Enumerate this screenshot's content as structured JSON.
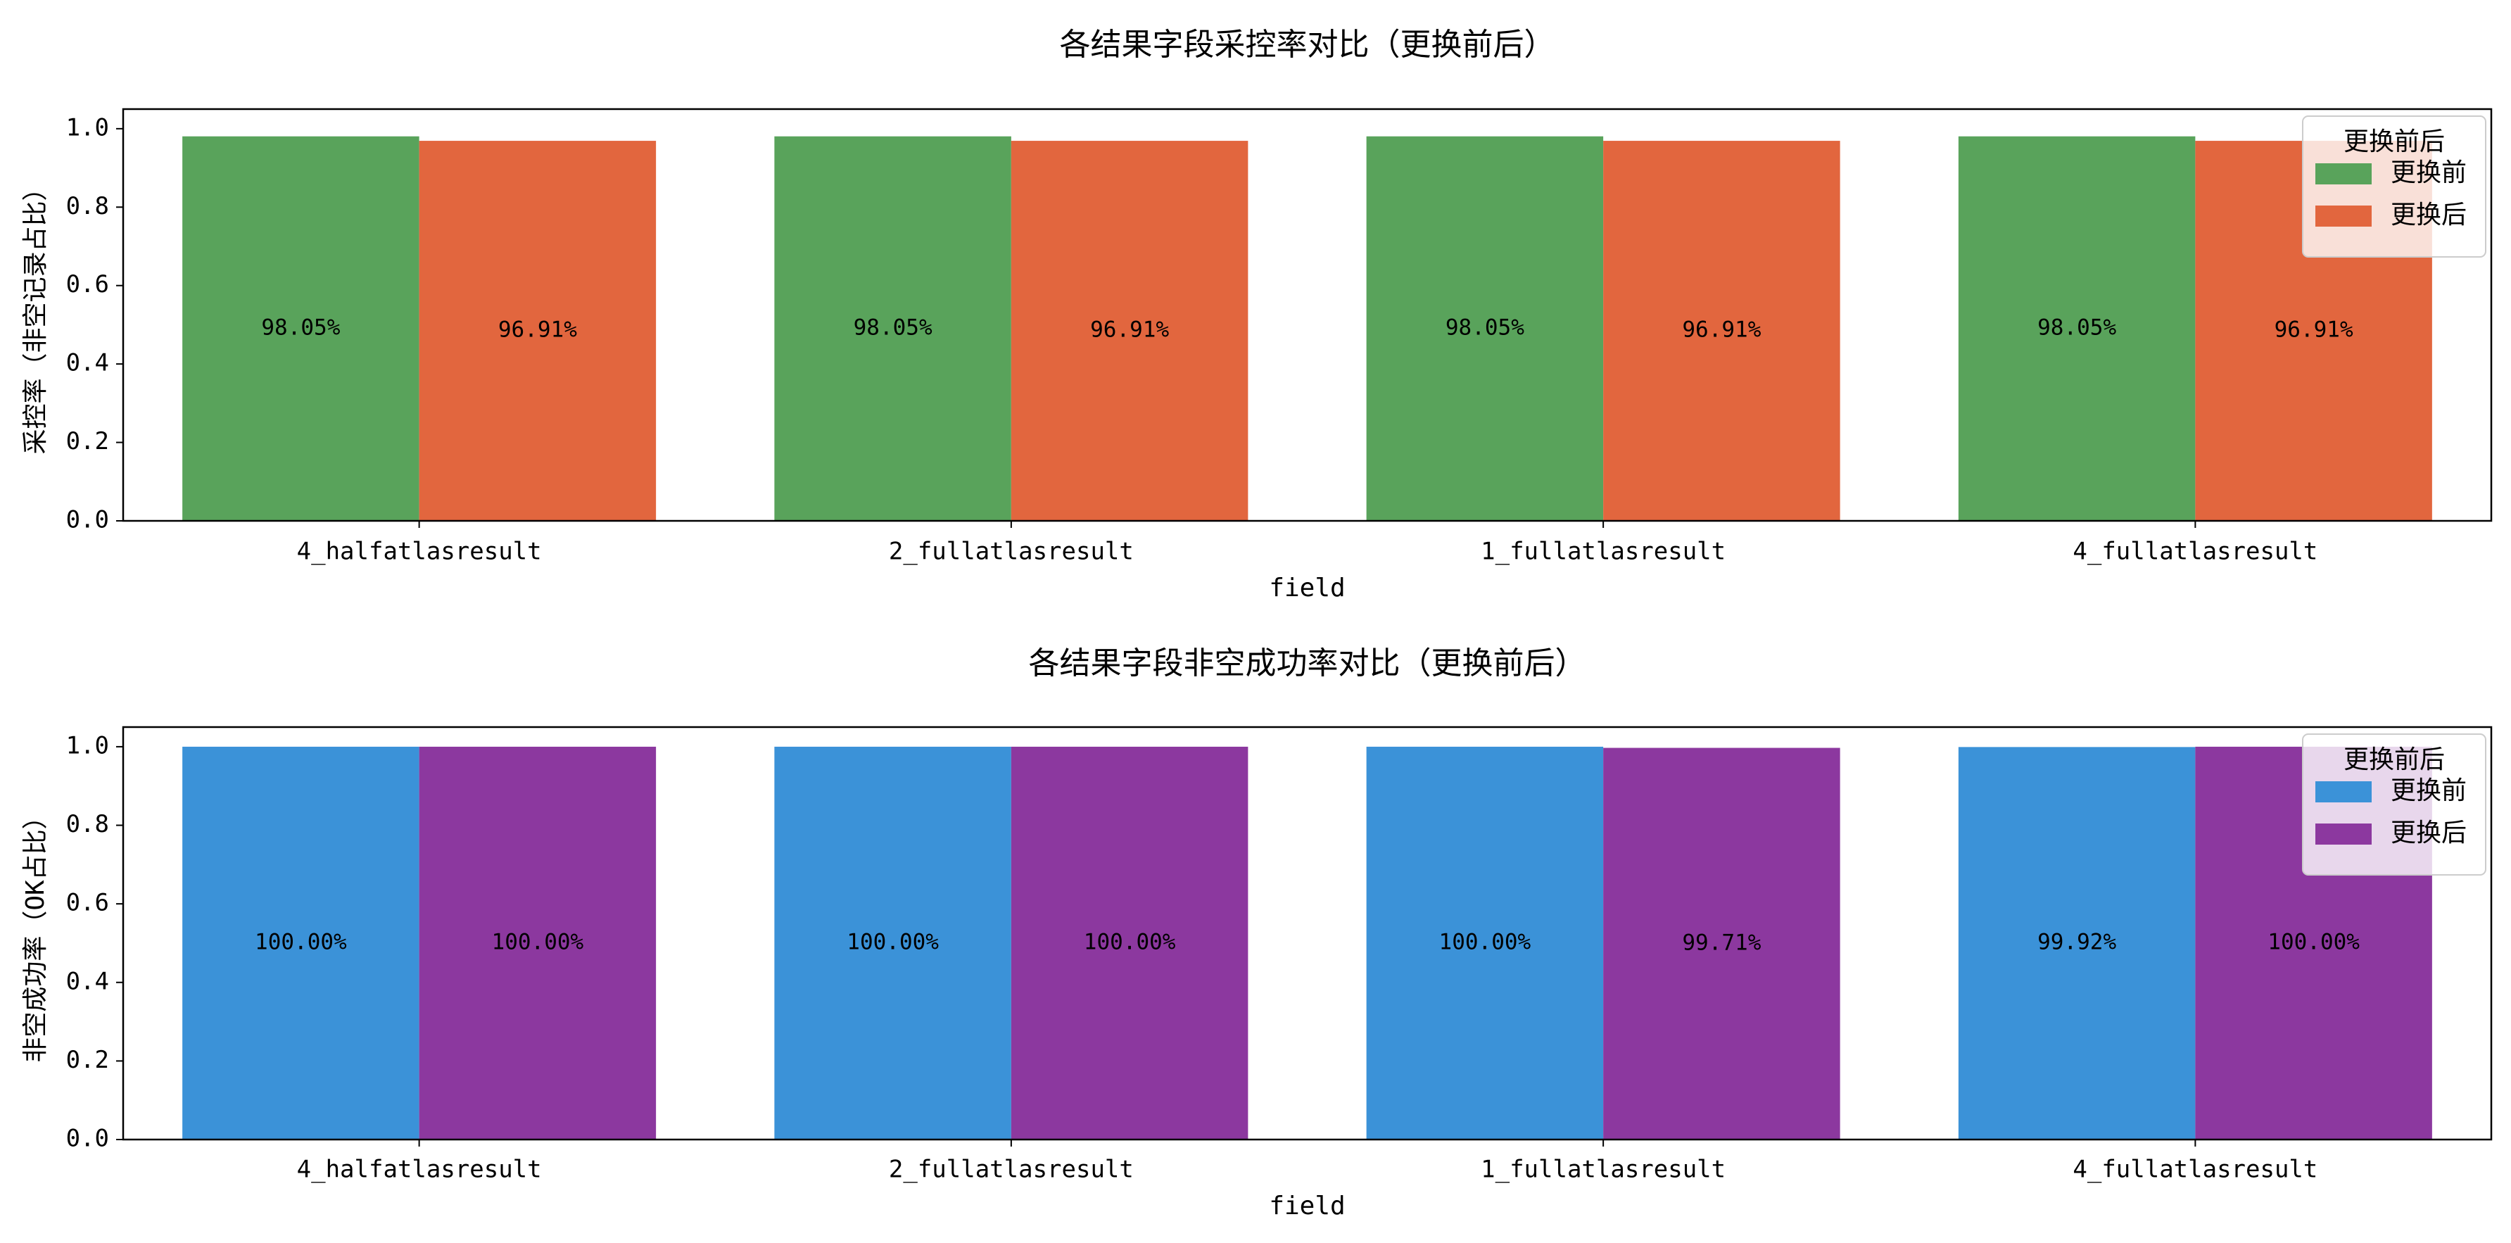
{
  "chart_data": [
    {
      "type": "bar",
      "title": "各结果字段采控率对比（更换前后）",
      "xlabel": "field",
      "ylabel": "采控率（非空记录占比）",
      "categories": [
        "4_halfatlasresult",
        "2_fullatlasresult",
        "1_fullatlasresult",
        "4_fullatlasresult"
      ],
      "series": [
        {
          "name": "更换前",
          "color": "#59a35b",
          "values": [
            0.9805,
            0.9805,
            0.9805,
            0.9805
          ],
          "labels": [
            "98.05%",
            "98.05%",
            "98.05%",
            "98.05%"
          ]
        },
        {
          "name": "更换后",
          "color": "#e2663e",
          "values": [
            0.9691,
            0.9691,
            0.9691,
            0.9691
          ],
          "labels": [
            "96.91%",
            "96.91%",
            "96.91%",
            "96.91%"
          ]
        }
      ],
      "ylim": [
        0,
        1.05
      ],
      "yticks": [
        "0.0",
        "0.2",
        "0.4",
        "0.6",
        "0.8",
        "1.0"
      ],
      "legend_title": "更换前后",
      "legend_position": "top-right",
      "grid": false
    },
    {
      "type": "bar",
      "title": "各结果字段非空成功率对比（更换前后）",
      "xlabel": "field",
      "ylabel": "非空成功率（OK占比）",
      "categories": [
        "4_halfatlasresult",
        "2_fullatlasresult",
        "1_fullatlasresult",
        "4_fullatlasresult"
      ],
      "series": [
        {
          "name": "更换前",
          "color": "#3b92d8",
          "values": [
            1.0,
            1.0,
            1.0,
            0.9992
          ],
          "labels": [
            "100.00%",
            "100.00%",
            "100.00%",
            "99.92%"
          ]
        },
        {
          "name": "更换后",
          "color": "#8c389f",
          "values": [
            1.0,
            1.0,
            0.9971,
            1.0
          ],
          "labels": [
            "100.00%",
            "100.00%",
            "99.71%",
            "100.00%"
          ]
        }
      ],
      "ylim": [
        0,
        1.05
      ],
      "yticks": [
        "0.0",
        "0.2",
        "0.4",
        "0.6",
        "0.8",
        "1.0"
      ],
      "legend_title": "更换前后",
      "legend_position": "top-right",
      "grid": false
    }
  ]
}
